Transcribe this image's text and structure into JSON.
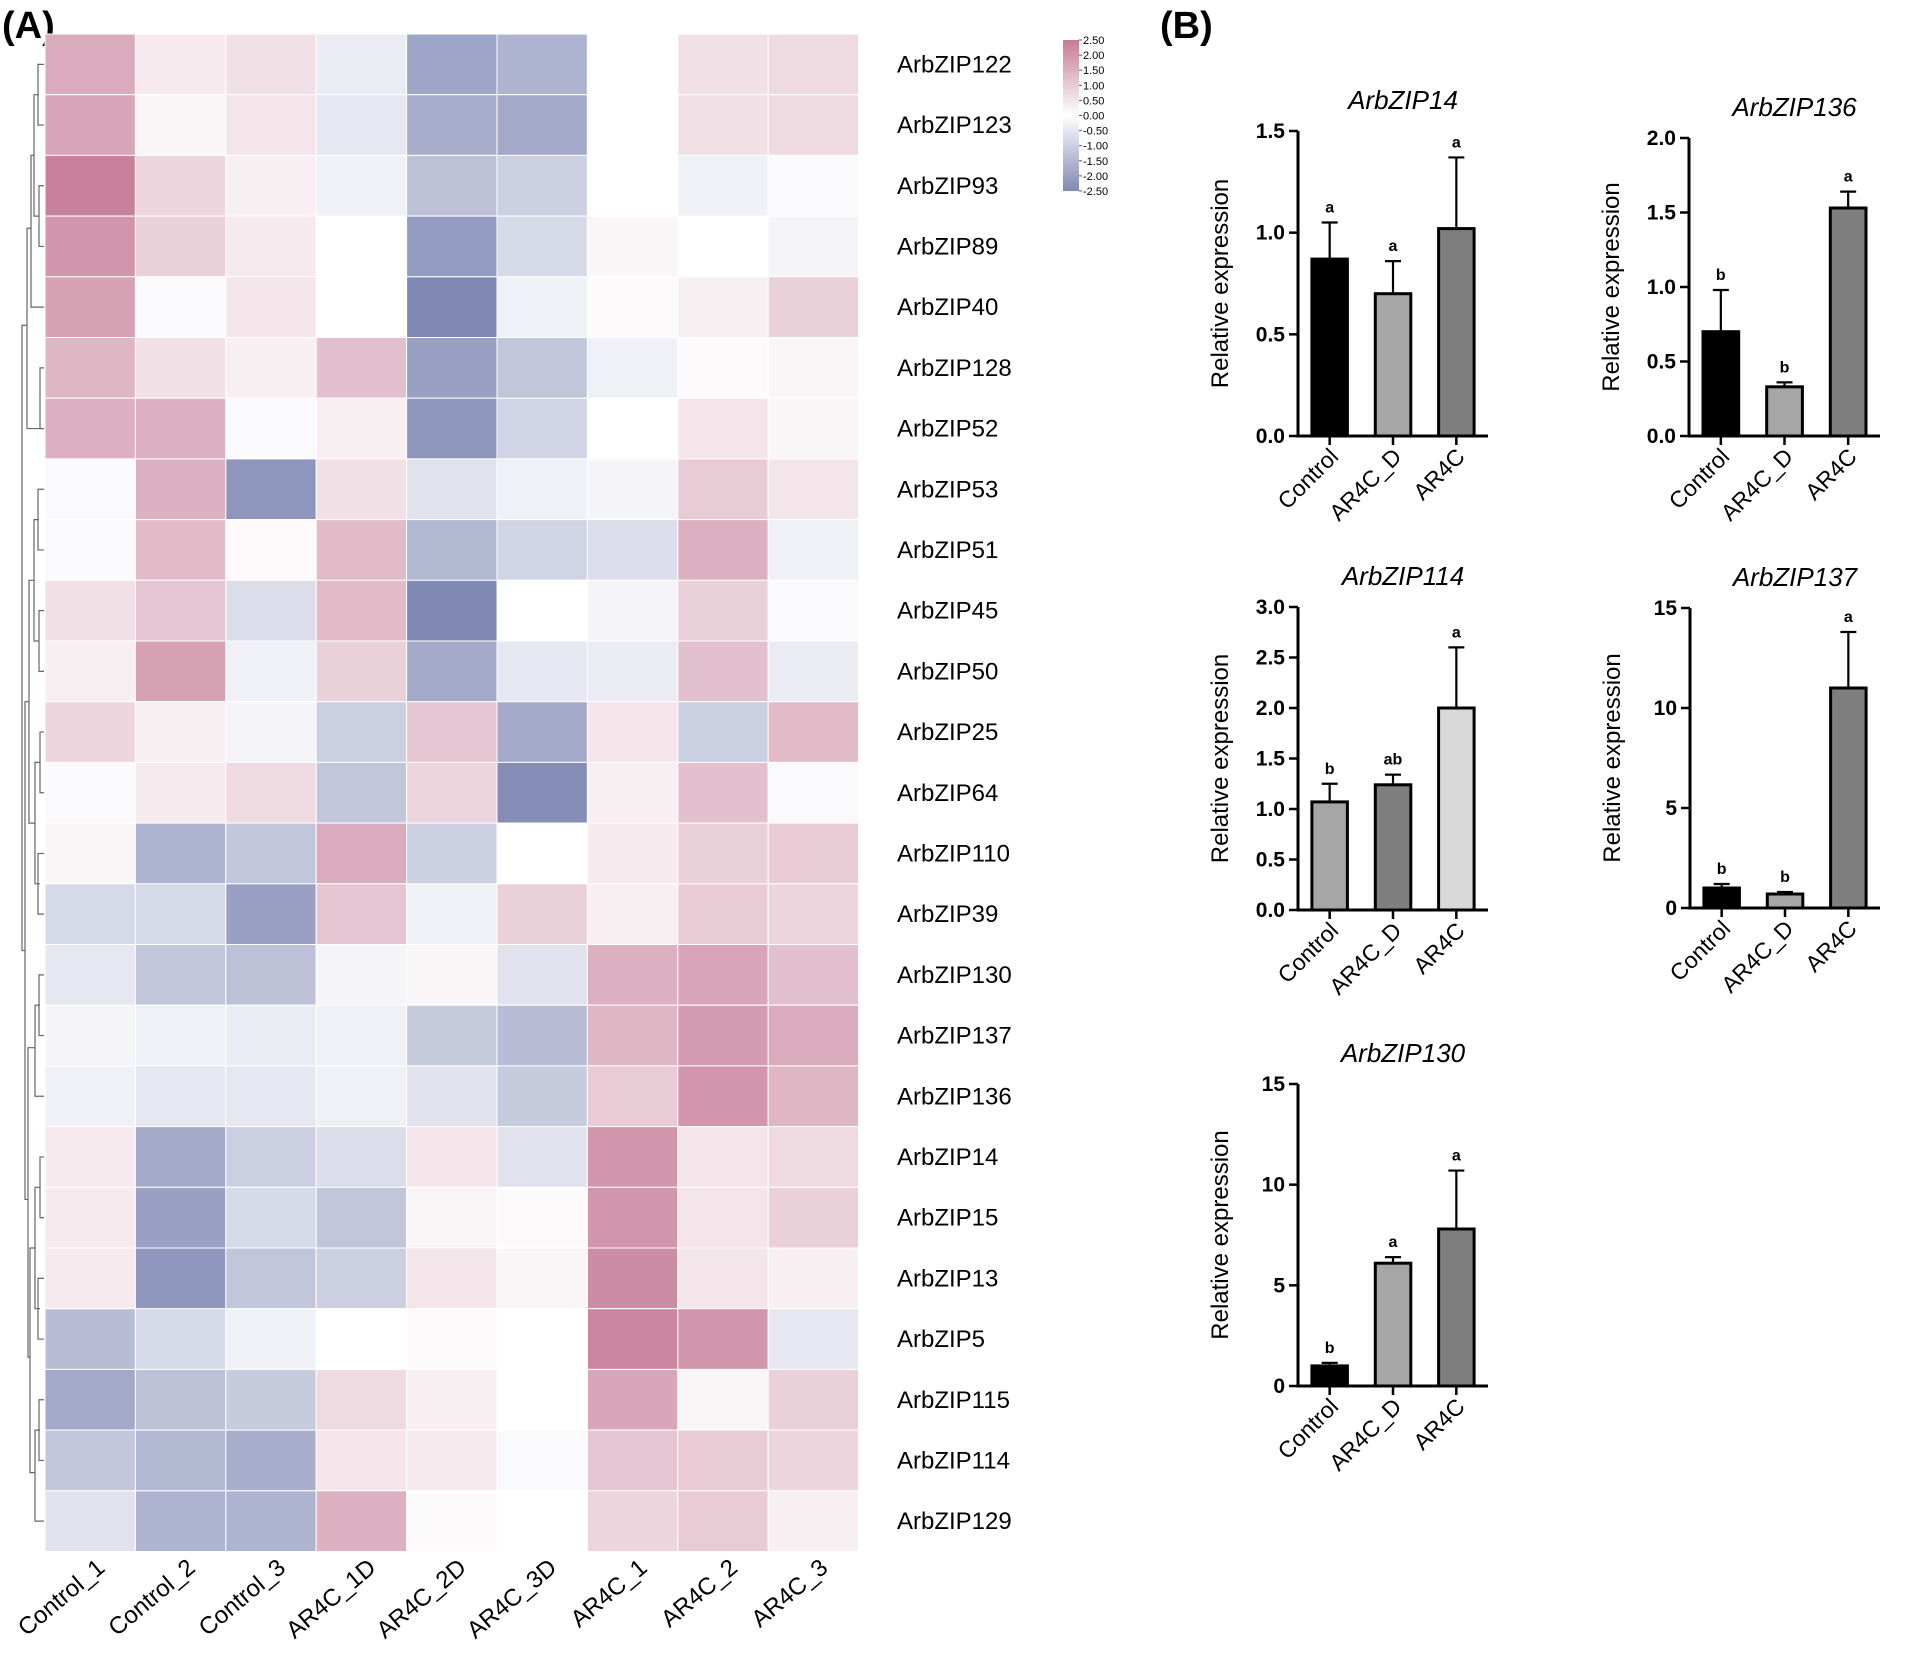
{
  "panel_a_label": "(A)",
  "panel_b_label": "(B)",
  "chart_data": [
    {
      "type": "heatmap",
      "columns": [
        "Control_1",
        "Control_2",
        "Control_3",
        "AR4C_1D",
        "AR4C_2D",
        "AR4C_3D",
        "AR4C_1",
        "AR4C_2",
        "AR4C_3"
      ],
      "rows": [
        "ArbZIP122",
        "ArbZIP123",
        "ArbZIP93",
        "ArbZIP89",
        "ArbZIP40",
        "ArbZIP128",
        "ArbZIP52",
        "ArbZIP53",
        "ArbZIP51",
        "ArbZIP45",
        "ArbZIP50",
        "ArbZIP25",
        "ArbZIP64",
        "ArbZIP110",
        "ArbZIP39",
        "ArbZIP130",
        "ArbZIP137",
        "ArbZIP136",
        "ArbZIP14",
        "ArbZIP15",
        "ArbZIP13",
        "ArbZIP5",
        "ArbZIP115",
        "ArbZIP114",
        "ArbZIP129"
      ],
      "values": [
        [
          1.6,
          0.4,
          0.6,
          -0.4,
          -1.9,
          -1.6,
          0.0,
          0.6,
          0.7
        ],
        [
          1.7,
          0.2,
          0.5,
          -0.5,
          -1.7,
          -1.8,
          0.0,
          0.6,
          0.7
        ],
        [
          2.4,
          0.8,
          0.3,
          -0.3,
          -1.3,
          -1.0,
          0.0,
          -0.3,
          -0.1
        ],
        [
          2.0,
          0.9,
          0.4,
          0.0,
          -2.1,
          -0.8,
          0.2,
          0.0,
          -0.2
        ],
        [
          1.8,
          -0.1,
          0.5,
          0.0,
          -2.5,
          -0.3,
          0.1,
          0.3,
          0.9
        ],
        [
          1.4,
          0.6,
          0.3,
          1.2,
          -2.0,
          -1.2,
          -0.3,
          0.1,
          0.2
        ],
        [
          1.5,
          1.5,
          -0.1,
          0.3,
          -2.2,
          -0.9,
          0.0,
          0.5,
          0.2
        ],
        [
          -0.1,
          1.5,
          -2.2,
          0.6,
          -0.6,
          -0.3,
          -0.2,
          1.0,
          0.5
        ],
        [
          -0.1,
          1.3,
          0.1,
          1.3,
          -1.5,
          -0.9,
          -0.7,
          1.5,
          -0.3
        ],
        [
          0.6,
          1.1,
          -0.7,
          1.3,
          -2.5,
          0.0,
          -0.2,
          0.9,
          -0.1
        ],
        [
          0.3,
          1.8,
          -0.3,
          0.9,
          -1.8,
          -0.5,
          -0.4,
          1.2,
          -0.4
        ],
        [
          0.8,
          0.3,
          -0.2,
          -1.0,
          1.1,
          -1.8,
          0.5,
          -1.0,
          1.3
        ],
        [
          -0.1,
          0.4,
          0.7,
          -1.2,
          0.8,
          -2.4,
          0.3,
          1.2,
          -0.1
        ],
        [
          0.2,
          -1.6,
          -1.2,
          1.6,
          -1.0,
          0.0,
          0.4,
          0.9,
          1.0
        ],
        [
          -0.8,
          -0.8,
          -2.0,
          1.1,
          -0.3,
          0.9,
          0.3,
          1.0,
          0.8
        ],
        [
          -0.5,
          -1.2,
          -1.3,
          -0.2,
          0.2,
          -0.6,
          1.5,
          1.7,
          1.2
        ],
        [
          -0.2,
          -0.3,
          -0.4,
          -0.3,
          -1.1,
          -1.4,
          1.4,
          1.9,
          1.6
        ],
        [
          -0.3,
          -0.5,
          -0.5,
          -0.3,
          -0.6,
          -1.1,
          1.0,
          2.0,
          1.4
        ],
        [
          0.4,
          -1.8,
          -1.0,
          -0.7,
          0.5,
          -0.6,
          2.0,
          0.5,
          0.7
        ],
        [
          0.4,
          -2.0,
          -0.8,
          -1.2,
          0.2,
          0.1,
          2.0,
          0.5,
          0.9
        ],
        [
          0.4,
          -2.2,
          -1.2,
          -1.0,
          0.5,
          0.2,
          2.2,
          0.5,
          0.3
        ],
        [
          -1.4,
          -0.8,
          -0.3,
          0.0,
          0.1,
          0.0,
          2.3,
          2.0,
          -0.5
        ],
        [
          -1.8,
          -1.3,
          -1.1,
          0.7,
          0.3,
          0.0,
          1.7,
          0.2,
          0.9
        ],
        [
          -1.2,
          -1.5,
          -1.7,
          0.5,
          0.4,
          -0.1,
          1.1,
          1.0,
          0.8
        ],
        [
          -0.6,
          -1.6,
          -1.6,
          1.5,
          0.1,
          0.0,
          0.8,
          1.0,
          0.3
        ]
      ],
      "color_scale": {
        "min": -2.5,
        "max": 2.5,
        "ticks": [
          "2.50",
          "2.00",
          "1.50",
          "1.00",
          "0.50",
          "0.00",
          "-0.50",
          "-1.00",
          "-1.50",
          "-2.00",
          "-2.50"
        ],
        "low_color": "#8088b4",
        "mid_color": "#ffffff",
        "high_color": "#c57c96"
      }
    },
    {
      "type": "bar",
      "title": "ArbZIP14",
      "ylabel": "Relative expression",
      "categories": [
        "Control",
        "AR4C_D",
        "AR4C"
      ],
      "values": [
        0.87,
        0.7,
        1.02
      ],
      "errors": [
        0.18,
        0.16,
        0.35
      ],
      "significance": [
        "a",
        "a",
        "a"
      ],
      "bar_colors": [
        "#000000",
        "#a6a6a6",
        "#7f7f7f"
      ],
      "ylim": [
        0,
        1.5
      ],
      "yticks": [
        "0.0",
        "0.5",
        "1.0",
        "1.5"
      ]
    },
    {
      "type": "bar",
      "title": "ArbZIP136",
      "ylabel": "Relative expression",
      "categories": [
        "Control",
        "AR4C_D",
        "AR4C"
      ],
      "values": [
        0.7,
        0.33,
        1.53
      ],
      "errors": [
        0.28,
        0.03,
        0.11
      ],
      "significance": [
        "b",
        "b",
        "a"
      ],
      "bar_colors": [
        "#000000",
        "#a6a6a6",
        "#7f7f7f"
      ],
      "ylim": [
        0,
        2.0
      ],
      "yticks": [
        "0.0",
        "0.5",
        "1.0",
        "1.5",
        "2.0"
      ]
    },
    {
      "type": "bar",
      "title": "ArbZIP114",
      "ylabel": "Relative expression",
      "categories": [
        "Control",
        "AR4C_D",
        "AR4C"
      ],
      "values": [
        1.07,
        1.24,
        2.0
      ],
      "errors": [
        0.18,
        0.1,
        0.6
      ],
      "significance": [
        "b",
        "ab",
        "a"
      ],
      "bar_colors": [
        "#a6a6a6",
        "#7f7f7f",
        "#d9d9d9"
      ],
      "ylim": [
        0,
        3.0
      ],
      "yticks": [
        "0.0",
        "0.5",
        "1.0",
        "1.5",
        "2.0",
        "2.5",
        "3.0"
      ]
    },
    {
      "type": "bar",
      "title": "ArbZIP137",
      "ylabel": "Relative expression",
      "categories": [
        "Control",
        "AR4C_D",
        "AR4C"
      ],
      "values": [
        1.0,
        0.7,
        11.0
      ],
      "errors": [
        0.2,
        0.1,
        2.8
      ],
      "significance": [
        "b",
        "b",
        "a"
      ],
      "bar_colors": [
        "#000000",
        "#a6a6a6",
        "#7f7f7f"
      ],
      "ylim": [
        0,
        15
      ],
      "yticks": [
        "0",
        "5",
        "10",
        "15"
      ]
    },
    {
      "type": "bar",
      "title": "ArbZIP130",
      "ylabel": "Relative expression",
      "categories": [
        "Control",
        "AR4C_D",
        "AR4C"
      ],
      "values": [
        1.0,
        6.1,
        7.8
      ],
      "errors": [
        0.15,
        0.3,
        2.9
      ],
      "significance": [
        "b",
        "a",
        "a"
      ],
      "bar_colors": [
        "#000000",
        "#a6a6a6",
        "#7f7f7f"
      ],
      "ylim": [
        0,
        15
      ],
      "yticks": [
        "0",
        "5",
        "10",
        "15"
      ]
    }
  ]
}
